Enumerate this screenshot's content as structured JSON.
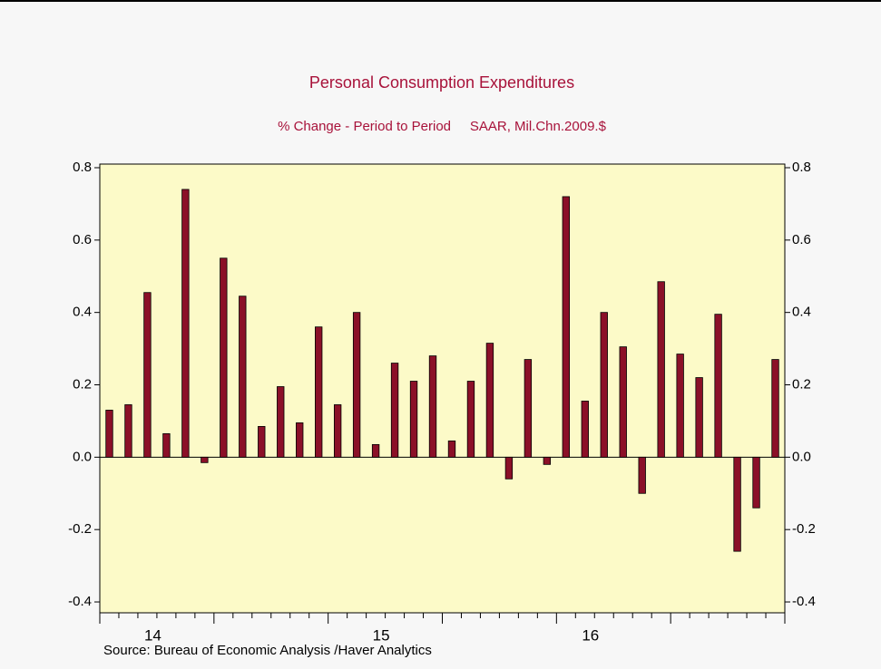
{
  "chart_data": {
    "type": "bar",
    "title": "Personal Consumption Expenditures",
    "subtitle": "% Change - Period to Period     SAAR, Mil.Chn.2009.$",
    "source": "Source:  Bureau of Economic Analysis /Haver Analytics",
    "categories": [
      null,
      null,
      "14",
      null,
      null,
      null,
      null,
      null,
      null,
      null,
      null,
      null,
      null,
      null,
      "15",
      null,
      null,
      null,
      null,
      null,
      null,
      null,
      null,
      null,
      null,
      "16",
      null,
      null,
      null,
      null,
      null,
      null,
      null,
      null,
      null,
      null
    ],
    "values": [
      0.13,
      0.145,
      0.455,
      0.065,
      0.74,
      -0.015,
      0.55,
      0.445,
      0.085,
      0.195,
      0.095,
      0.36,
      0.145,
      0.4,
      0.035,
      0.26,
      0.21,
      0.28,
      0.045,
      0.21,
      0.315,
      -0.06,
      0.27,
      -0.02,
      0.72,
      0.155,
      0.4,
      0.305,
      -0.1,
      0.485,
      0.285,
      0.22,
      0.395,
      -0.26,
      -0.14,
      0.27
    ],
    "color": "#8b1028",
    "ylim": [
      -0.43,
      0.81
    ],
    "yticks": [
      {
        "value": -0.4,
        "label": "-0.4"
      },
      {
        "value": -0.2,
        "label": "-0.2"
      },
      {
        "value": 0,
        "label": "0.0"
      },
      {
        "value": 0.2,
        "label": "0.2"
      },
      {
        "value": 0.4,
        "label": "0.4"
      },
      {
        "value": 0.6,
        "label": "0.6"
      },
      {
        "value": 0.8,
        "label": "0.8"
      }
    ],
    "y2lim": [
      -0.43,
      0.81
    ],
    "y2ticks": [
      {
        "value": -0.4,
        "label": "-0.4"
      },
      {
        "value": -0.2,
        "label": "-0.2"
      },
      {
        "value": 0,
        "label": "0.0"
      },
      {
        "value": 0.2,
        "label": "0.2"
      },
      {
        "value": 0.4,
        "label": "0.4"
      },
      {
        "value": 0.6,
        "label": "0.6"
      },
      {
        "value": 0.8,
        "label": "0.8"
      }
    ]
  }
}
